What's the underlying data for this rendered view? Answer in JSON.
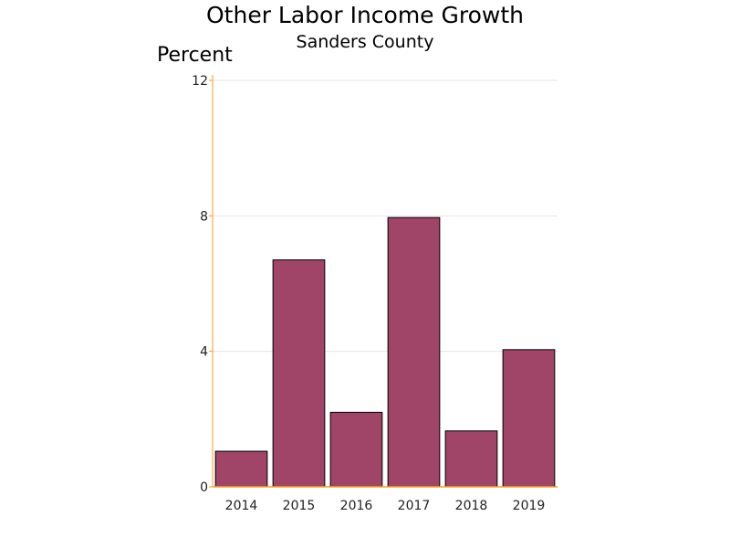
{
  "chart_data": {
    "type": "bar",
    "title": "Other Labor Income Growth",
    "subtitle": "Sanders County",
    "xlabel": "",
    "ylabel": "Percent",
    "categories": [
      "2014",
      "2015",
      "2016",
      "2017",
      "2018",
      "2019"
    ],
    "values": [
      1.05,
      6.7,
      2.2,
      7.95,
      1.65,
      4.05
    ],
    "ylim": [
      0,
      12
    ],
    "yticks": [
      0,
      4,
      8,
      12
    ],
    "grid": true,
    "legend": "none",
    "colors": {
      "bar_fill": "#a04468",
      "bar_stroke": "#000000",
      "axis": "#f0a020",
      "grid": "#e4e4e4"
    }
  }
}
